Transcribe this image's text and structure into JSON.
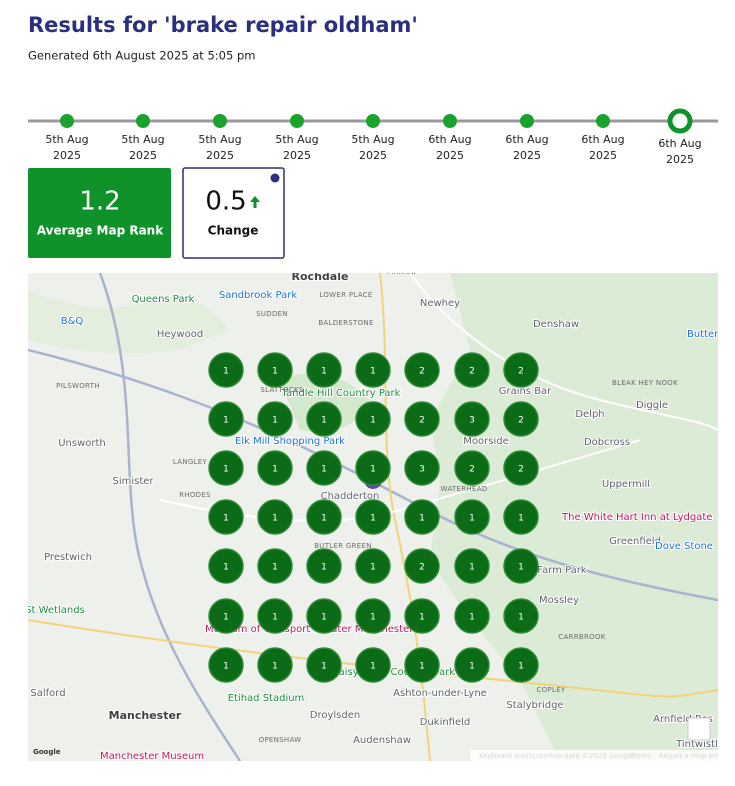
{
  "header": {
    "title": "Results for 'brake repair oldham'",
    "generated": "Generated 6th August 2025 at 5:05 pm"
  },
  "timeline": [
    {
      "day": "5th Aug",
      "year": "2025"
    },
    {
      "day": "5th Aug",
      "year": "2025"
    },
    {
      "day": "5th Aug",
      "year": "2025"
    },
    {
      "day": "5th Aug",
      "year": "2025"
    },
    {
      "day": "5th Aug",
      "year": "2025"
    },
    {
      "day": "6th Aug",
      "year": "2025"
    },
    {
      "day": "6th Aug",
      "year": "2025"
    },
    {
      "day": "6th Aug",
      "year": "2025"
    },
    {
      "day": "6th Aug",
      "year": "2025"
    }
  ],
  "stats": {
    "average": {
      "value": "1.2",
      "label": "Average Map Rank"
    },
    "change": {
      "value": "0.5",
      "label": "Change"
    }
  },
  "grid": [
    [
      "1",
      "1",
      "1",
      "1",
      "2",
      "2",
      "2"
    ],
    [
      "1",
      "1",
      "1",
      "1",
      "2",
      "3",
      "2"
    ],
    [
      "1",
      "1",
      "1",
      "1",
      "3",
      "2",
      "2"
    ],
    [
      "1",
      "1",
      "1",
      "1",
      "1",
      "1",
      "1"
    ],
    [
      "1",
      "1",
      "1",
      "1",
      "2",
      "1",
      "1"
    ],
    [
      "1",
      "1",
      "1",
      "1",
      "1",
      "1",
      "1"
    ],
    [
      "1",
      "1",
      "1",
      "1",
      "1",
      "1",
      "1"
    ]
  ],
  "map": {
    "labels": [
      "Rochdale",
      "Milnrow",
      "Newhey",
      "Denshaw",
      "Queens Park",
      "Sandbrook Park",
      "SUDDEN",
      "LOWER PLACE",
      "BALDERSTONE",
      "Heywood",
      "B&Q",
      "PILSWORTH",
      "Unsworth",
      "Simister",
      "Prestwich",
      "Delph",
      "Diggle",
      "Dobcross",
      "Uppermill",
      "Greenfield",
      "Mossley",
      "Stalybridge",
      "Manchester",
      "Salford",
      "Droylsden",
      "Ashton-under-Lyne",
      "Dukinfield",
      "Audenshaw",
      "Tandle Hill Country Park",
      "Elk Mill Shopping Park",
      "Chadderton",
      "Moorside",
      "Grains Bar",
      "The White Hart Inn at Lydgate",
      "Dove Stone",
      "Museum of Transport Greater Manchester",
      "Etihad Stadium",
      "Daisy Nook Country Park",
      "Farm Park",
      "Arnfield Res",
      "Tintwistle",
      "Butterl",
      "SLATTOCKS",
      "LANGLEY",
      "RHODES",
      "BUTLER GREEN",
      "WATERHEAD",
      "BLEAK HEY NOOK",
      "CARRBROOK",
      "COPLEY",
      "OPENSHAW",
      "Manchester Museum",
      "St Wetlands"
    ],
    "footer": [
      "Google",
      "Keyboard shortcuts",
      "Map data ©2025 Google",
      "Terms",
      "Report a map error"
    ]
  }
}
